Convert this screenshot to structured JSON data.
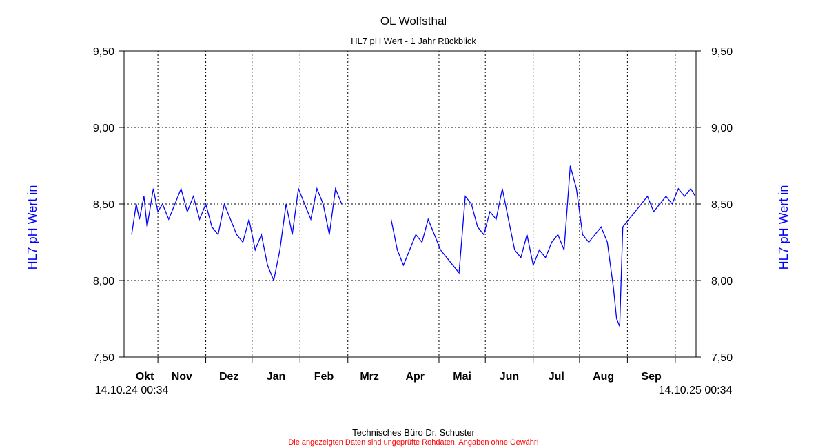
{
  "chart_data": {
    "type": "line",
    "title": "OL Wolfsthal",
    "subtitle": "HL7 pH Wert - 1 Jahr Rückblick",
    "ylabel": "HL7 pH Wert in",
    "ylim": [
      7.5,
      9.5
    ],
    "yticks": [
      "7,50",
      "8,00",
      "8,50",
      "9,00",
      "9,50"
    ],
    "ytick_values": [
      7.5,
      8.0,
      8.5,
      9.0,
      9.5
    ],
    "xlim_days": [
      0,
      365
    ],
    "months": [
      {
        "label": "Okt",
        "tick_day": 17
      },
      {
        "label": "Nov",
        "tick_day": 48
      },
      {
        "label": "Dez",
        "tick_day": 78
      },
      {
        "label": "Jan",
        "tick_day": 109
      },
      {
        "label": "Feb",
        "tick_day": 140
      },
      {
        "label": "Mrz",
        "tick_day": 168
      },
      {
        "label": "Apr",
        "tick_day": 199
      },
      {
        "label": "Mai",
        "tick_day": 229
      },
      {
        "label": "Jun",
        "tick_day": 260
      },
      {
        "label": "Jul",
        "tick_day": 290
      },
      {
        "label": "Aug",
        "tick_day": 321
      },
      {
        "label": "Sep",
        "tick_day": 352
      }
    ],
    "start_label": "14.10.24 00:34",
    "end_label": "14.10.25 00:34",
    "grid": true,
    "line_color": "#0000ff",
    "series": [
      {
        "values": [
          {
            "day": 0,
            "ph": 8.3
          },
          {
            "day": 3,
            "ph": 8.5
          },
          {
            "day": 5,
            "ph": 8.4
          },
          {
            "day": 8,
            "ph": 8.55
          },
          {
            "day": 10,
            "ph": 8.35
          },
          {
            "day": 14,
            "ph": 8.6
          },
          {
            "day": 17,
            "ph": 8.45
          },
          {
            "day": 20,
            "ph": 8.5
          },
          {
            "day": 24,
            "ph": 8.4
          },
          {
            "day": 28,
            "ph": 8.5
          },
          {
            "day": 32,
            "ph": 8.6
          },
          {
            "day": 36,
            "ph": 8.45
          },
          {
            "day": 40,
            "ph": 8.55
          },
          {
            "day": 44,
            "ph": 8.4
          },
          {
            "day": 48,
            "ph": 8.5
          },
          {
            "day": 52,
            "ph": 8.35
          },
          {
            "day": 56,
            "ph": 8.3
          },
          {
            "day": 60,
            "ph": 8.5
          },
          {
            "day": 64,
            "ph": 8.4
          },
          {
            "day": 68,
            "ph": 8.3
          },
          {
            "day": 72,
            "ph": 8.25
          },
          {
            "day": 76,
            "ph": 8.4
          },
          {
            "day": 80,
            "ph": 8.2
          },
          {
            "day": 84,
            "ph": 8.3
          },
          {
            "day": 88,
            "ph": 8.1
          },
          {
            "day": 92,
            "ph": 8.0
          },
          {
            "day": 96,
            "ph": 8.2
          },
          {
            "day": 100,
            "ph": 8.5
          },
          {
            "day": 104,
            "ph": 8.3
          },
          {
            "day": 108,
            "ph": 8.6
          },
          {
            "day": 112,
            "ph": 8.5
          },
          {
            "day": 116,
            "ph": 8.4
          },
          {
            "day": 120,
            "ph": 8.6
          },
          {
            "day": 124,
            "ph": 8.5
          },
          {
            "day": 128,
            "ph": 8.3
          },
          {
            "day": 132,
            "ph": 8.6
          },
          {
            "day": 136,
            "ph": 8.5
          },
          {
            "day": 168,
            "ph": 8.4
          },
          {
            "day": 172,
            "ph": 8.2
          },
          {
            "day": 176,
            "ph": 8.1
          },
          {
            "day": 180,
            "ph": 8.2
          },
          {
            "day": 184,
            "ph": 8.3
          },
          {
            "day": 188,
            "ph": 8.25
          },
          {
            "day": 192,
            "ph": 8.4
          },
          {
            "day": 196,
            "ph": 8.3
          },
          {
            "day": 200,
            "ph": 8.2
          },
          {
            "day": 204,
            "ph": 8.15
          },
          {
            "day": 208,
            "ph": 8.1
          },
          {
            "day": 212,
            "ph": 8.05
          },
          {
            "day": 216,
            "ph": 8.55
          },
          {
            "day": 220,
            "ph": 8.5
          },
          {
            "day": 224,
            "ph": 8.35
          },
          {
            "day": 228,
            "ph": 8.3
          },
          {
            "day": 232,
            "ph": 8.45
          },
          {
            "day": 236,
            "ph": 8.4
          },
          {
            "day": 240,
            "ph": 8.6
          },
          {
            "day": 244,
            "ph": 8.4
          },
          {
            "day": 248,
            "ph": 8.2
          },
          {
            "day": 252,
            "ph": 8.15
          },
          {
            "day": 256,
            "ph": 8.3
          },
          {
            "day": 260,
            "ph": 8.1
          },
          {
            "day": 264,
            "ph": 8.2
          },
          {
            "day": 268,
            "ph": 8.15
          },
          {
            "day": 272,
            "ph": 8.25
          },
          {
            "day": 276,
            "ph": 8.3
          },
          {
            "day": 280,
            "ph": 8.2
          },
          {
            "day": 284,
            "ph": 8.75
          },
          {
            "day": 288,
            "ph": 8.6
          },
          {
            "day": 292,
            "ph": 8.3
          },
          {
            "day": 296,
            "ph": 8.25
          },
          {
            "day": 300,
            "ph": 8.3
          },
          {
            "day": 304,
            "ph": 8.35
          },
          {
            "day": 308,
            "ph": 8.25
          },
          {
            "day": 312,
            "ph": 7.95
          },
          {
            "day": 314,
            "ph": 7.75
          },
          {
            "day": 316,
            "ph": 7.7
          },
          {
            "day": 318,
            "ph": 8.35
          },
          {
            "day": 322,
            "ph": 8.4
          },
          {
            "day": 326,
            "ph": 8.45
          },
          {
            "day": 330,
            "ph": 8.5
          },
          {
            "day": 334,
            "ph": 8.55
          },
          {
            "day": 338,
            "ph": 8.45
          },
          {
            "day": 342,
            "ph": 8.5
          },
          {
            "day": 346,
            "ph": 8.55
          },
          {
            "day": 350,
            "ph": 8.5
          },
          {
            "day": 354,
            "ph": 8.6
          },
          {
            "day": 358,
            "ph": 8.55
          },
          {
            "day": 362,
            "ph": 8.6
          },
          {
            "day": 365,
            "ph": 8.55
          }
        ]
      }
    ]
  },
  "footer": {
    "company": "Technisches Büro Dr. Schuster",
    "disclaimer": "Die angezeigten Daten sind ungeprüfte Rohdaten, Angaben ohne Gewähr!",
    "disclaimer_color": "#ff0000"
  }
}
